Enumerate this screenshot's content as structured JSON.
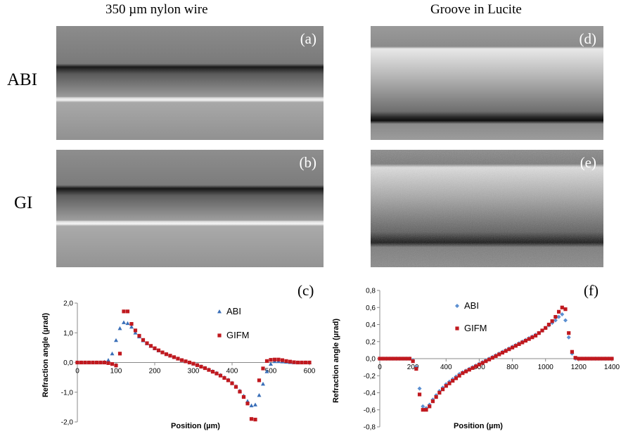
{
  "figure": {
    "column_titles": [
      "350 µm nylon wire",
      "Groove  in Lucite"
    ],
    "row_labels": [
      "ABI",
      "GI"
    ],
    "panel_tags": {
      "a": "(a)",
      "b": "(b)",
      "c": "(c)",
      "d": "(d)",
      "e": "(e)",
      "f": "(f)"
    }
  },
  "chart_data": [
    {
      "type": "scatter",
      "panel": "(c)",
      "xlabel": "Position (µm)",
      "ylabel": "Refraction angle (µrad)",
      "xlim": [
        0,
        600
      ],
      "ylim": [
        -2.0,
        2.0
      ],
      "xticks": [
        0,
        100,
        200,
        300,
        400,
        500,
        600
      ],
      "yticks": [
        -2.0,
        -1.0,
        0.0,
        1.0,
        2.0
      ],
      "ytick_labels": [
        "-2,0",
        "-1,0",
        "0,0",
        "1,0",
        "2,0"
      ],
      "legend_placement": "right",
      "series": [
        {
          "name": "ABI",
          "color": "#3a6fb8",
          "marker": "triangle",
          "x": [
            0,
            10,
            20,
            30,
            40,
            50,
            60,
            70,
            80,
            90,
            100,
            110,
            120,
            130,
            140,
            150,
            160,
            170,
            180,
            190,
            200,
            210,
            220,
            230,
            240,
            250,
            260,
            270,
            280,
            290,
            300,
            310,
            320,
            330,
            340,
            350,
            360,
            370,
            380,
            390,
            400,
            410,
            420,
            430,
            440,
            450,
            460,
            470,
            480,
            490,
            500,
            510,
            520,
            530,
            540,
            550,
            560,
            570,
            580,
            590,
            600
          ],
          "y": [
            0,
            0,
            0,
            0,
            0,
            0,
            0,
            0.02,
            0.08,
            0.3,
            0.75,
            1.15,
            1.35,
            1.32,
            1.2,
            1.0,
            0.87,
            0.74,
            0.64,
            0.55,
            0.47,
            0.4,
            0.34,
            0.28,
            0.23,
            0.18,
            0.13,
            0.08,
            0.04,
            0,
            -0.04,
            -0.08,
            -0.13,
            -0.18,
            -0.23,
            -0.29,
            -0.35,
            -0.42,
            -0.5,
            -0.58,
            -0.68,
            -0.8,
            -0.95,
            -1.12,
            -1.3,
            -1.45,
            -1.42,
            -1.1,
            -0.72,
            -0.3,
            -0.05,
            0.04,
            0.04,
            0.03,
            0.02,
            0.01,
            0,
            0,
            0,
            0,
            0
          ]
        },
        {
          "name": "GIFM",
          "color": "#c0191f",
          "marker": "square",
          "x": [
            0,
            10,
            20,
            30,
            40,
            50,
            60,
            70,
            80,
            90,
            100,
            110,
            120,
            130,
            140,
            150,
            160,
            170,
            180,
            190,
            200,
            210,
            220,
            230,
            240,
            250,
            260,
            270,
            280,
            290,
            300,
            310,
            320,
            330,
            340,
            350,
            360,
            370,
            380,
            390,
            400,
            410,
            420,
            430,
            440,
            450,
            460,
            470,
            480,
            490,
            500,
            510,
            520,
            530,
            540,
            550,
            560,
            570,
            580,
            590,
            600
          ],
          "y": [
            0,
            0,
            0,
            0,
            0,
            0,
            0,
            0,
            -0.02,
            -0.05,
            -0.1,
            0.3,
            1.72,
            1.72,
            1.3,
            1.08,
            0.9,
            0.76,
            0.65,
            0.56,
            0.48,
            0.41,
            0.34,
            0.28,
            0.23,
            0.18,
            0.13,
            0.08,
            0.04,
            0,
            -0.04,
            -0.09,
            -0.14,
            -0.19,
            -0.25,
            -0.31,
            -0.37,
            -0.44,
            -0.52,
            -0.6,
            -0.7,
            -0.82,
            -0.98,
            -1.16,
            -1.38,
            -1.9,
            -1.92,
            -0.6,
            -0.2,
            0.05,
            0.09,
            0.1,
            0.1,
            0.08,
            0.05,
            0.03,
            0.01,
            0,
            0,
            0,
            0
          ]
        }
      ]
    },
    {
      "type": "scatter",
      "panel": "(f)",
      "xlabel": "Position (µm)",
      "ylabel": "Refraction angle (µrad)",
      "xlim": [
        0,
        1400
      ],
      "ylim": [
        -0.8,
        0.8
      ],
      "xticks": [
        0,
        200,
        400,
        600,
        800,
        1000,
        1200,
        1400
      ],
      "yticks": [
        -0.8,
        -0.6,
        -0.4,
        -0.2,
        0.0,
        0.2,
        0.4,
        0.6,
        0.8
      ],
      "ytick_labels": [
        "-0,8",
        "-0,6",
        "-0,4",
        "-0,2",
        "0,0",
        "0,2",
        "0,4",
        "0,6",
        "0,8"
      ],
      "legend_placement": "top-left",
      "series": [
        {
          "name": "ABI",
          "color": "#5b8fd1",
          "marker": "diamond",
          "x": [
            0,
            20,
            40,
            60,
            80,
            100,
            120,
            140,
            160,
            180,
            200,
            220,
            240,
            260,
            280,
            300,
            320,
            340,
            360,
            380,
            400,
            420,
            440,
            460,
            480,
            500,
            520,
            540,
            560,
            580,
            600,
            620,
            640,
            660,
            680,
            700,
            720,
            740,
            760,
            780,
            800,
            820,
            840,
            860,
            880,
            900,
            920,
            940,
            960,
            980,
            1000,
            1020,
            1040,
            1060,
            1080,
            1100,
            1120,
            1140,
            1160,
            1180,
            1200,
            1220,
            1240,
            1260,
            1280,
            1300,
            1320,
            1340,
            1360,
            1380,
            1400
          ],
          "y": [
            0,
            0,
            0,
            0,
            0,
            0,
            0,
            0,
            0,
            0,
            -0.02,
            -0.1,
            -0.35,
            -0.56,
            -0.58,
            -0.54,
            -0.48,
            -0.43,
            -0.38,
            -0.34,
            -0.3,
            -0.27,
            -0.24,
            -0.21,
            -0.18,
            -0.16,
            -0.14,
            -0.12,
            -0.1,
            -0.08,
            -0.06,
            -0.04,
            -0.02,
            0,
            0.02,
            0.04,
            0.06,
            0.08,
            0.1,
            0.12,
            0.14,
            0.16,
            0.18,
            0.2,
            0.22,
            0.24,
            0.26,
            0.28,
            0.3,
            0.33,
            0.36,
            0.39,
            0.42,
            0.45,
            0.49,
            0.52,
            0.45,
            0.25,
            0.06,
            0,
            0,
            0,
            0,
            0,
            0,
            0,
            0,
            0,
            0,
            0,
            0
          ]
        },
        {
          "name": "GIFM",
          "color": "#c0191f",
          "marker": "square",
          "x": [
            0,
            20,
            40,
            60,
            80,
            100,
            120,
            140,
            160,
            180,
            200,
            220,
            240,
            260,
            280,
            300,
            320,
            340,
            360,
            380,
            400,
            420,
            440,
            460,
            480,
            500,
            520,
            540,
            560,
            580,
            600,
            620,
            640,
            660,
            680,
            700,
            720,
            740,
            760,
            780,
            800,
            820,
            840,
            860,
            880,
            900,
            920,
            940,
            960,
            980,
            1000,
            1020,
            1040,
            1060,
            1080,
            1100,
            1120,
            1140,
            1160,
            1180,
            1200,
            1220,
            1240,
            1260,
            1280,
            1300,
            1320,
            1340,
            1360,
            1380,
            1400
          ],
          "y": [
            0,
            0,
            0,
            0,
            0,
            0,
            0,
            0,
            0,
            0,
            -0.03,
            -0.12,
            -0.42,
            -0.6,
            -0.6,
            -0.56,
            -0.5,
            -0.45,
            -0.4,
            -0.36,
            -0.32,
            -0.29,
            -0.26,
            -0.23,
            -0.2,
            -0.17,
            -0.15,
            -0.13,
            -0.11,
            -0.09,
            -0.07,
            -0.05,
            -0.03,
            -0.01,
            0.01,
            0.03,
            0.05,
            0.07,
            0.09,
            0.11,
            0.13,
            0.15,
            0.17,
            0.19,
            0.21,
            0.23,
            0.25,
            0.27,
            0.3,
            0.33,
            0.36,
            0.4,
            0.44,
            0.49,
            0.55,
            0.6,
            0.58,
            0.3,
            0.08,
            0.01,
            0,
            0,
            0,
            0,
            0,
            0,
            0,
            0,
            0,
            0,
            0
          ]
        }
      ]
    }
  ]
}
